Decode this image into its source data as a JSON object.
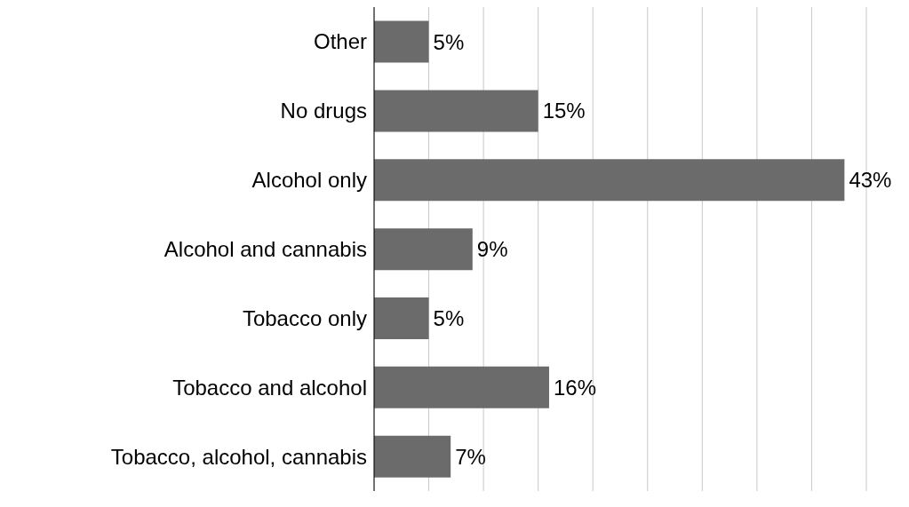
{
  "chart_data": {
    "type": "bar",
    "orientation": "horizontal",
    "categories": [
      "Other",
      "No drugs",
      "Alcohol only",
      "Alcohol and cannabis",
      "Tobacco only",
      "Tobacco and alcohol",
      "Tobacco, alcohol, cannabis"
    ],
    "values": [
      5,
      15,
      43,
      9,
      5,
      16,
      7
    ],
    "value_labels": [
      "5%",
      "15%",
      "43%",
      "9%",
      "5%",
      "16%",
      "7%"
    ],
    "color": "#6b6b6b",
    "xlim": [
      0,
      45
    ],
    "xticks": [
      {
        "value": 0,
        "label": null
      },
      {
        "value": 5,
        "label": null
      },
      {
        "value": 10,
        "label": null
      },
      {
        "value": 15,
        "label": null
      },
      {
        "value": 20,
        "label": null
      },
      {
        "value": 25,
        "label": null
      },
      {
        "value": 30,
        "label": null
      },
      {
        "value": 35,
        "label": null
      },
      {
        "value": 40,
        "label": null
      },
      {
        "value": 45,
        "label": null
      }
    ],
    "grid": "x",
    "tick_labels": "y"
  }
}
